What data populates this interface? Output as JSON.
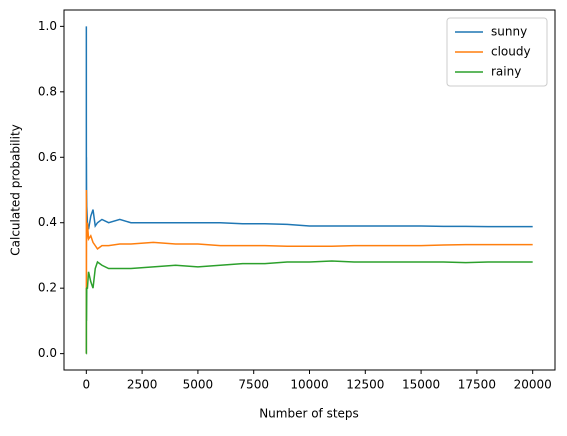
{
  "chart_data": {
    "type": "line",
    "x_label": "Number of steps",
    "y_label": "Calculated probability",
    "x": [
      1,
      2,
      5,
      10,
      20,
      50,
      100,
      200,
      300,
      400,
      500,
      700,
      1000,
      1500,
      2000,
      3000,
      4000,
      5000,
      6000,
      7000,
      8000,
      9000,
      10000,
      11000,
      12000,
      13000,
      14000,
      15000,
      16000,
      17000,
      18000,
      19000,
      20000
    ],
    "series": [
      {
        "name": "sunny",
        "color": "#1f77b4",
        "values": [
          1.0,
          0.5,
          0.6,
          0.5,
          0.45,
          0.4,
          0.38,
          0.42,
          0.44,
          0.39,
          0.4,
          0.41,
          0.4,
          0.41,
          0.4,
          0.4,
          0.4,
          0.4,
          0.4,
          0.397,
          0.397,
          0.395,
          0.39,
          0.39,
          0.39,
          0.39,
          0.39,
          0.39,
          0.389,
          0.389,
          0.388,
          0.388,
          0.388
        ]
      },
      {
        "name": "cloudy",
        "color": "#ff7f0e",
        "values": [
          0,
          0.5,
          0.2,
          0.4,
          0.35,
          0.4,
          0.35,
          0.36,
          0.34,
          0.33,
          0.32,
          0.33,
          0.33,
          0.335,
          0.335,
          0.34,
          0.335,
          0.335,
          0.33,
          0.33,
          0.33,
          0.328,
          0.328,
          0.328,
          0.33,
          0.33,
          0.33,
          0.33,
          0.332,
          0.333,
          0.333,
          0.333,
          0.333
        ]
      },
      {
        "name": "rainy",
        "color": "#2ca02c",
        "values": [
          0,
          0,
          0.2,
          0.1,
          0.2,
          0.2,
          0.25,
          0.22,
          0.2,
          0.26,
          0.28,
          0.27,
          0.26,
          0.26,
          0.26,
          0.265,
          0.27,
          0.265,
          0.27,
          0.275,
          0.275,
          0.28,
          0.28,
          0.283,
          0.28,
          0.28,
          0.28,
          0.28,
          0.28,
          0.278,
          0.28,
          0.28,
          0.28
        ]
      }
    ],
    "xlim": [
      -1000,
      21000
    ],
    "ylim": [
      -0.05,
      1.05
    ],
    "xticks": [
      0,
      2500,
      5000,
      7500,
      10000,
      12500,
      15000,
      17500,
      20000
    ],
    "yticks": [
      {
        "value": 0,
        "label": "0.0"
      },
      {
        "value": 0.2,
        "label": "0.2"
      },
      {
        "value": 0.4,
        "label": "0.4"
      },
      {
        "value": 0.6,
        "label": "0.6"
      },
      {
        "value": 0.8,
        "label": "0.8"
      },
      {
        "value": 1,
        "label": "1.0"
      }
    ],
    "grid": false,
    "legend": "upper-right"
  }
}
